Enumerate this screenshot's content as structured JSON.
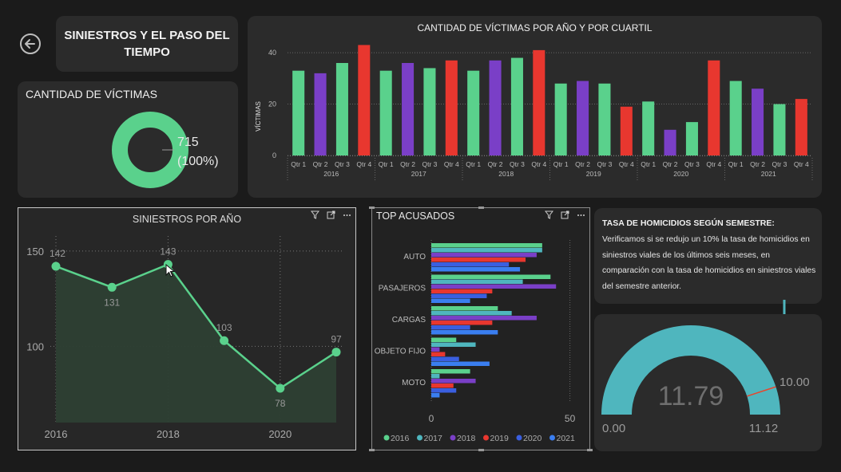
{
  "header": {
    "title": "SINIESTROS Y EL PASO DEL TIEMPO",
    "back_icon": "arrow-left-circle-icon"
  },
  "victims_card": {
    "title": "CANTIDAD DE VÍCTIMAS",
    "value": "715",
    "percent": "(100%)",
    "color": "#5ad18c"
  },
  "quarter_chart": {
    "title": "CANTIDAD DE VÍCTIMAS POR AÑO Y POR CUARTIL",
    "ylabel": "VÍCTIMAS"
  },
  "year_chart": {
    "title": "SINIESTROS POR AÑO"
  },
  "top_chart": {
    "title": "TOP ACUSADOS"
  },
  "visual_icons": {
    "filter": "filter-icon",
    "focus": "focus-mode-icon",
    "more": "more-options-icon"
  },
  "text_card": {
    "heading": "TASA DE HOMICIDIOS SEGÚN SEMESTRE:",
    "body": "Verificamos si se redujo un 10% la tasa de homicidios en siniestros viales de los últimos seis meses,  en comparación con la tasa de homicidios en siniestros viales del semestre anterior."
  },
  "gauge": {
    "value": "11.79",
    "min": "0.00",
    "max": "11.12",
    "target": "10.00",
    "value_num": 11.79,
    "min_num": 0,
    "max_num": 11.12,
    "target_num": 10.0,
    "fill_color": "#4fb6be",
    "target_color": "#e8452c"
  },
  "chart_data": [
    {
      "type": "bar",
      "title": "CANTIDAD DE VÍCTIMAS POR AÑO Y POR CUARTIL",
      "ylabel": "VÍCTIMAS",
      "ylim": [
        0,
        45
      ],
      "yticks": [
        0,
        20,
        40
      ],
      "years": [
        "2016",
        "2017",
        "2018",
        "2019",
        "2020",
        "2021"
      ],
      "quarters": [
        "Qtr 1",
        "Qtr 2",
        "Qtr 3",
        "Qtr 4"
      ],
      "values": [
        [
          33,
          32,
          36,
          43
        ],
        [
          33,
          36,
          34,
          37
        ],
        [
          33,
          37,
          38,
          41
        ],
        [
          28,
          29,
          28,
          19
        ],
        [
          21,
          10,
          13,
          37
        ],
        [
          29,
          26,
          20,
          22
        ]
      ],
      "quarter_colors": [
        "#5ad18c",
        "#7a3fc7",
        "#5ad18c",
        "#e8372f"
      ],
      "bar_colors": [
        [
          "#5ad18c",
          "#7a3fc7",
          "#5ad18c",
          "#e8372f"
        ],
        [
          "#5ad18c",
          "#7a3fc7",
          "#5ad18c",
          "#e8372f"
        ],
        [
          "#5ad18c",
          "#7a3fc7",
          "#5ad18c",
          "#e8372f"
        ],
        [
          "#5ad18c",
          "#7a3fc7",
          "#5ad18c",
          "#e8372f"
        ],
        [
          "#5ad18c",
          "#7a3fc7",
          "#5ad18c",
          "#e8372f"
        ],
        [
          "#5ad18c",
          "#7a3fc7",
          "#5ad18c",
          "#e8372f"
        ]
      ],
      "grid": true
    },
    {
      "type": "area",
      "title": "SINIESTROS POR AÑO",
      "x": [
        2016,
        2017,
        2018,
        2019,
        2020,
        2021
      ],
      "values": [
        142,
        131,
        143,
        103,
        78,
        97
      ],
      "xticks": [
        "2016",
        "2018",
        "2020"
      ],
      "yticks": [
        100,
        150
      ],
      "ylim": [
        60,
        160
      ],
      "color": "#5ad18c",
      "grid": true
    },
    {
      "type": "bar",
      "orientation": "horizontal",
      "title": "TOP ACUSADOS",
      "categories": [
        "AUTO",
        "PASAJEROS",
        "CARGAS",
        "OBJETO FIJO",
        "MOTO"
      ],
      "series": [
        {
          "name": "2016",
          "color": "#5ad18c",
          "values": [
            40,
            43,
            24,
            9,
            14
          ]
        },
        {
          "name": "2017",
          "color": "#4fb6be",
          "values": [
            40,
            33,
            29,
            16,
            3
          ]
        },
        {
          "name": "2018",
          "color": "#7a3fc7",
          "values": [
            38,
            45,
            38,
            3,
            16
          ]
        },
        {
          "name": "2019",
          "color": "#e8372f",
          "values": [
            34,
            22,
            22,
            5,
            8
          ]
        },
        {
          "name": "2020",
          "color": "#3a5fe0",
          "values": [
            28,
            20,
            14,
            10,
            9
          ]
        },
        {
          "name": "2021",
          "color": "#3a7ef0",
          "values": [
            32,
            14,
            24,
            21,
            3
          ]
        }
      ],
      "xticks": [
        0,
        50
      ],
      "xlim": [
        0,
        53
      ],
      "legend": "bottom"
    }
  ]
}
